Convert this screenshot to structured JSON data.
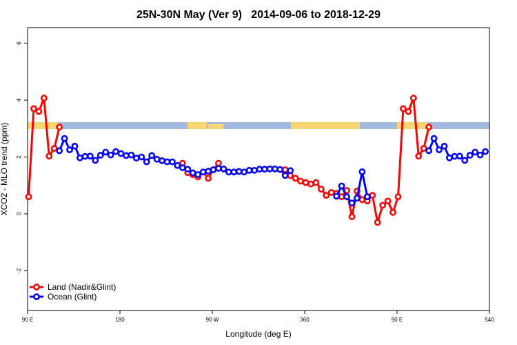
{
  "chart_data": {
    "type": "line",
    "title": "25N-30N May (Ver 9)   2014-09-06 to 2018-12-29",
    "xlabel": "Longitude (deg E)",
    "ylabel": "XCO2 - MLO trend (ppm)",
    "xlim": [
      90,
      540
    ],
    "ylim": [
      -3.4,
      6.55
    ],
    "xticks": [
      {
        "value": 90,
        "label": "90 E"
      },
      180,
      {
        "value": 270,
        "label": "90 W"
      },
      360,
      {
        "value": 450,
        "label": "90 E"
      },
      540
    ],
    "yticks": [
      -2,
      0,
      2,
      4,
      6
    ],
    "grid": false,
    "legend": "bottom-left",
    "series": [
      {
        "name": "Land (Nadir&Glint)",
        "color": "#ff0000",
        "x": [
          91,
          96,
          101,
          106,
          111,
          116,
          121,
          126,
          241,
          246,
          251,
          256,
          261,
          266,
          271,
          276,
          281,
          341,
          346,
          351,
          356,
          361,
          366,
          371,
          376,
          381,
          386,
          391,
          396,
          401,
          406,
          411,
          416,
          421,
          426,
          431,
          436,
          441,
          446,
          451,
          456,
          461,
          466,
          471,
          476,
          481
        ],
        "values": [
          0.6,
          3.7,
          3.6,
          4.07,
          2.03,
          2.3,
          3.05,
          null,
          1.78,
          1.45,
          1.38,
          1.3,
          1.47,
          1.25,
          1.55,
          1.78,
          null,
          1.55,
          1.35,
          1.25,
          1.15,
          1.1,
          1.05,
          1.1,
          0.87,
          0.65,
          0.75,
          0.72,
          0.6,
          0.82,
          -0.1,
          0.8,
          0.5,
          0.45,
          0.65,
          -0.3,
          0.3,
          0.45,
          0.05,
          0.6,
          3.7,
          3.6,
          4.07,
          2.03,
          2.3,
          3.05
        ]
      },
      {
        "name": "Ocean (Glint)",
        "color": "#0000ff",
        "x": [
          121,
          126,
          131,
          136,
          141,
          146,
          151,
          156,
          161,
          166,
          171,
          176,
          181,
          186,
          191,
          196,
          201,
          206,
          211,
          216,
          221,
          226,
          231,
          236,
          241,
          246,
          251,
          256,
          261,
          266,
          271,
          276,
          281,
          286,
          291,
          296,
          301,
          306,
          311,
          316,
          321,
          326,
          331,
          336,
          341,
          346,
          351,
          391,
          396,
          401,
          406,
          411,
          416,
          421,
          426,
          481,
          486,
          491,
          496,
          501,
          506,
          511,
          516,
          521,
          526,
          531,
          536
        ],
        "values": [
          2.22,
          2.65,
          2.25,
          2.38,
          1.97,
          2.02,
          2.03,
          1.88,
          2.06,
          2.17,
          2.07,
          2.19,
          2.12,
          2.05,
          2.07,
          1.96,
          2.0,
          1.83,
          2.05,
          1.92,
          1.87,
          1.83,
          1.83,
          1.7,
          1.62,
          1.57,
          1.44,
          1.38,
          1.47,
          1.5,
          1.55,
          1.6,
          1.58,
          1.47,
          1.47,
          1.49,
          1.47,
          1.53,
          1.53,
          1.57,
          1.57,
          1.58,
          1.58,
          1.56,
          1.35,
          1.52,
          null,
          0.62,
          0.98,
          0.6,
          0.38,
          0.55,
          1.48,
          0.6,
          null,
          2.22,
          2.65,
          2.25,
          2.38,
          1.97,
          2.02,
          2.03,
          1.88,
          2.06,
          2.17,
          2.07,
          2.19
        ]
      }
    ]
  }
}
